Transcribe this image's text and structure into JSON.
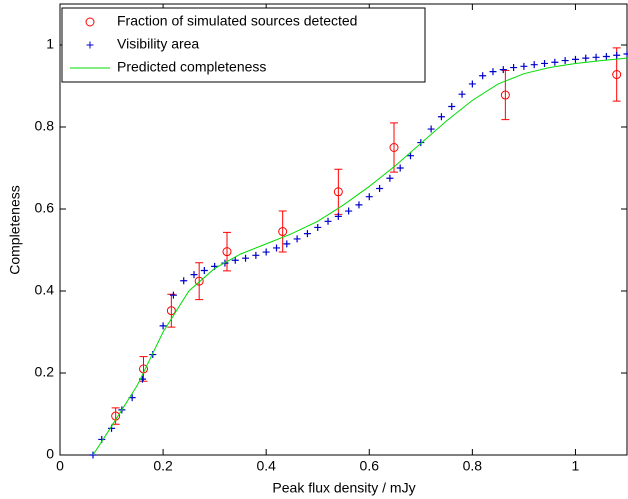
{
  "chart_data": {
    "type": "scatter",
    "xlabel": "Peak flux density / mJy",
    "ylabel": "Completeness",
    "xlim": [
      0,
      1.1
    ],
    "ylim": [
      0,
      1.1
    ],
    "xticks": [
      0,
      0.2,
      0.4,
      0.6,
      0.8,
      1
    ],
    "yticks": [
      0,
      0.2,
      0.4,
      0.6,
      0.8,
      1
    ],
    "legend": "upper left",
    "series": [
      {
        "name": "Fraction of simulated sources detected",
        "color": "#ff0000",
        "marker": "circle",
        "x": [
          0.108,
          0.162,
          0.216,
          0.27,
          0.324,
          0.432,
          0.54,
          0.648,
          0.864,
          1.08
        ],
        "values": [
          0.095,
          0.21,
          0.352,
          0.424,
          0.496,
          0.545,
          0.642,
          0.75,
          0.878,
          0.928
        ],
        "errors": [
          0.02,
          0.03,
          0.04,
          0.045,
          0.047,
          0.05,
          0.055,
          0.06,
          0.06,
          0.065
        ]
      },
      {
        "name": "Visibility area",
        "color": "#0000cc",
        "marker": "plus",
        "x": [
          0.064,
          0.081,
          0.1,
          0.12,
          0.14,
          0.16,
          0.18,
          0.2,
          0.22,
          0.24,
          0.26,
          0.28,
          0.3,
          0.32,
          0.34,
          0.36,
          0.38,
          0.4,
          0.42,
          0.44,
          0.46,
          0.48,
          0.5,
          0.52,
          0.54,
          0.56,
          0.58,
          0.6,
          0.62,
          0.64,
          0.66,
          0.68,
          0.7,
          0.72,
          0.74,
          0.76,
          0.78,
          0.8,
          0.82,
          0.84,
          0.86,
          0.88,
          0.9,
          0.92,
          0.94,
          0.96,
          0.98,
          1.0,
          1.02,
          1.04,
          1.06,
          1.08,
          1.1
        ],
        "values": [
          0,
          0.038,
          0.065,
          0.11,
          0.14,
          0.185,
          0.245,
          0.315,
          0.39,
          0.425,
          0.44,
          0.45,
          0.46,
          0.468,
          0.475,
          0.48,
          0.487,
          0.495,
          0.505,
          0.515,
          0.527,
          0.54,
          0.555,
          0.57,
          0.582,
          0.595,
          0.61,
          0.63,
          0.65,
          0.675,
          0.7,
          0.73,
          0.762,
          0.795,
          0.825,
          0.85,
          0.88,
          0.905,
          0.925,
          0.935,
          0.94,
          0.945,
          0.948,
          0.952,
          0.955,
          0.958,
          0.962,
          0.965,
          0.968,
          0.97,
          0.972,
          0.975,
          0.978
        ]
      },
      {
        "name": "Predicted completeness",
        "color": "#00dd00",
        "marker": "line",
        "x": [
          0.064,
          0.1,
          0.15,
          0.2,
          0.25,
          0.3,
          0.35,
          0.4,
          0.45,
          0.5,
          0.55,
          0.6,
          0.65,
          0.7,
          0.75,
          0.8,
          0.85,
          0.9,
          0.95,
          1.0,
          1.05,
          1.1
        ],
        "values": [
          0,
          0.07,
          0.17,
          0.3,
          0.4,
          0.455,
          0.49,
          0.515,
          0.54,
          0.57,
          0.61,
          0.655,
          0.705,
          0.76,
          0.815,
          0.865,
          0.905,
          0.93,
          0.945,
          0.955,
          0.962,
          0.968
        ]
      }
    ]
  }
}
